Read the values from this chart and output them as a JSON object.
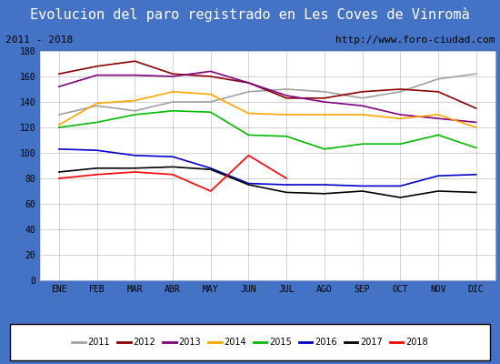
{
  "title": "Evolucion del paro registrado en Les Coves de Vinromà",
  "subtitle_left": "2011 - 2018",
  "subtitle_right": "http://www.foro-ciudad.com",
  "xlabel": "",
  "ylabel": "",
  "title_bg_color": "#4472C4",
  "title_text_color": "#FFFFFF",
  "subtitle_bg_color": "#FFFFFF",
  "subtitle_text_color": "#000000",
  "plot_bg_color": "#FFFFFF",
  "grid_color": "#C0C0C0",
  "ylim": [
    0,
    180
  ],
  "yticks": [
    0,
    20,
    40,
    60,
    80,
    100,
    120,
    140,
    160,
    180
  ],
  "months": [
    "ENE",
    "FEB",
    "MAR",
    "ABR",
    "MAY",
    "JUN",
    "JUL",
    "AGO",
    "SEP",
    "OCT",
    "NOV",
    "DIC"
  ],
  "series": {
    "2011": {
      "color": "#A0A0A0",
      "data": [
        130,
        137,
        133,
        140,
        140,
        148,
        150,
        148,
        143,
        148,
        158,
        162
      ]
    },
    "2012": {
      "color": "#8B0000",
      "data": [
        162,
        168,
        172,
        162,
        160,
        155,
        143,
        143,
        148,
        150,
        148,
        135
      ]
    },
    "2013": {
      "color": "#800080",
      "data": [
        152,
        161,
        161,
        160,
        164,
        155,
        145,
        140,
        137,
        130,
        127,
        124
      ]
    },
    "2014": {
      "color": "#FFA500",
      "data": [
        122,
        139,
        141,
        148,
        146,
        131,
        130,
        130,
        130,
        127,
        130,
        120
      ]
    },
    "2015": {
      "color": "#00BB00",
      "data": [
        120,
        124,
        130,
        133,
        132,
        114,
        113,
        103,
        107,
        107,
        114,
        104
      ]
    },
    "2016": {
      "color": "#0000CD",
      "data": [
        103,
        102,
        98,
        97,
        88,
        76,
        75,
        75,
        74,
        74,
        82,
        83
      ]
    },
    "2017": {
      "color": "#000000",
      "data": [
        85,
        88,
        88,
        89,
        87,
        75,
        69,
        68,
        70,
        65,
        70,
        69
      ]
    },
    "2018": {
      "color": "#FF0000",
      "data": [
        80,
        83,
        85,
        83,
        70,
        98,
        80,
        null,
        null,
        null,
        null,
        null
      ]
    }
  },
  "legend_order": [
    "2011",
    "2012",
    "2013",
    "2014",
    "2015",
    "2016",
    "2017",
    "2018"
  ]
}
